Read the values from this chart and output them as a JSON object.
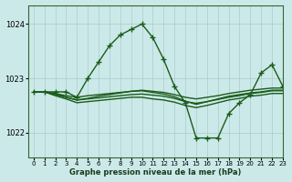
{
  "background_color": "#cce9e9",
  "grid_color": "#aacccc",
  "line_color": "#1a5c1a",
  "title": "Graphe pression niveau de la mer (hPa)",
  "xlim": [
    -0.5,
    23
  ],
  "ylim": [
    1021.55,
    1024.35
  ],
  "yticks": [
    1022,
    1023,
    1024
  ],
  "xticks": [
    0,
    1,
    2,
    3,
    4,
    5,
    6,
    7,
    8,
    9,
    10,
    11,
    12,
    13,
    14,
    15,
    16,
    17,
    18,
    19,
    20,
    21,
    22,
    23
  ],
  "series": [
    {
      "x": [
        0,
        1,
        2,
        3,
        4,
        5,
        6,
        7,
        8,
        9,
        10,
        11,
        12,
        13,
        14,
        15,
        16,
        17,
        18,
        19,
        20,
        21,
        22,
        23
      ],
      "y": [
        1022.75,
        1022.75,
        1022.75,
        1022.75,
        1022.65,
        1023.0,
        1023.3,
        1023.6,
        1023.8,
        1023.9,
        1024.0,
        1023.75,
        1023.35,
        1022.85,
        1022.55,
        1021.9,
        1021.9,
        1021.9,
        1022.35,
        1022.55,
        1022.7,
        1023.1,
        1023.25,
        1022.85
      ],
      "marker": "+",
      "markersize": 4,
      "linewidth": 1.0
    },
    {
      "x": [
        0,
        1,
        2,
        3,
        4,
        5,
        6,
        7,
        8,
        9,
        10,
        11,
        12,
        13,
        14,
        15,
        16,
        17,
        18,
        19,
        20,
        21,
        22,
        23
      ],
      "y": [
        1022.75,
        1022.75,
        1022.72,
        1022.68,
        1022.65,
        1022.68,
        1022.7,
        1022.72,
        1022.74,
        1022.76,
        1022.78,
        1022.76,
        1022.74,
        1022.7,
        1022.65,
        1022.62,
        1022.65,
        1022.68,
        1022.72,
        1022.75,
        1022.78,
        1022.8,
        1022.82,
        1022.82
      ],
      "marker": null,
      "markersize": 0,
      "linewidth": 1.0
    },
    {
      "x": [
        0,
        1,
        2,
        3,
        4,
        5,
        6,
        7,
        8,
        9,
        10,
        11,
        12,
        13,
        14,
        15,
        16,
        17,
        18,
        19,
        20,
        21,
        22,
        23
      ],
      "y": [
        1022.75,
        1022.75,
        1022.7,
        1022.65,
        1022.6,
        1022.62,
        1022.64,
        1022.66,
        1022.68,
        1022.7,
        1022.71,
        1022.69,
        1022.67,
        1022.63,
        1022.57,
        1022.54,
        1022.57,
        1022.61,
        1022.65,
        1022.68,
        1022.72,
        1022.74,
        1022.77,
        1022.77
      ],
      "marker": null,
      "markersize": 0,
      "linewidth": 1.0
    },
    {
      "x": [
        0,
        1,
        2,
        3,
        4,
        5,
        6,
        7,
        8,
        9,
        10,
        11,
        12,
        13,
        14,
        15,
        16,
        17,
        18,
        19,
        20,
        21,
        22,
        23
      ],
      "y": [
        1022.75,
        1022.75,
        1022.68,
        1022.62,
        1022.55,
        1022.57,
        1022.59,
        1022.61,
        1022.63,
        1022.65,
        1022.65,
        1022.62,
        1022.6,
        1022.56,
        1022.5,
        1022.46,
        1022.5,
        1022.55,
        1022.6,
        1022.63,
        1022.67,
        1022.69,
        1022.72,
        1022.72
      ],
      "marker": null,
      "markersize": 0,
      "linewidth": 1.0
    },
    {
      "x": [
        0,
        1,
        2,
        3,
        4,
        5,
        6,
        7,
        8,
        9,
        10,
        11,
        12,
        13,
        14,
        15,
        16,
        17,
        18,
        19,
        20,
        21,
        22,
        23
      ],
      "y": [
        1022.75,
        1022.75,
        1022.72,
        1022.65,
        1022.6,
        1022.63,
        1022.67,
        1022.7,
        1022.73,
        1022.76,
        1022.77,
        1022.74,
        1022.71,
        1022.66,
        1022.58,
        1022.52,
        1022.57,
        1022.62,
        1022.67,
        1022.7,
        1022.73,
        1022.75,
        1022.78,
        1022.78
      ],
      "marker": null,
      "markersize": 0,
      "linewidth": 1.0
    }
  ]
}
